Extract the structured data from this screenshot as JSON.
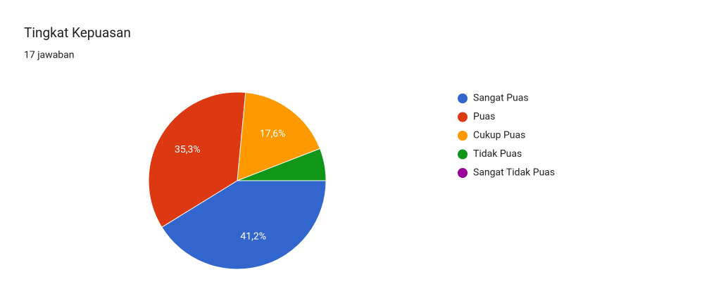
{
  "chart_data": {
    "type": "pie",
    "title": "Tingkat Kepuasan",
    "subtitle": "17 jawaban",
    "categories": [
      "Sangat Puas",
      "Puas",
      "Cukup Puas",
      "Tidak Puas",
      "Sangat Tidak Puas"
    ],
    "values": [
      41.2,
      35.3,
      17.6,
      5.9,
      0
    ],
    "value_labels": [
      "41,2%",
      "35,3%",
      "17,6%",
      null,
      null
    ],
    "colors": [
      "#3366cc",
      "#dc3912",
      "#ff9900",
      "#109618",
      "#990099"
    ],
    "legend": "right"
  }
}
